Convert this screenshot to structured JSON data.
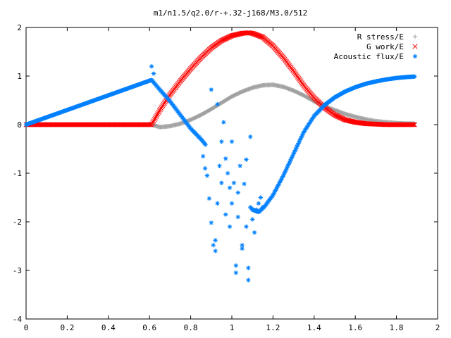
{
  "chart_data": {
    "type": "scatter",
    "title": "m1/n1.5/q2.0/r-+.32-j168/M3.0/512",
    "xlabel": "",
    "ylabel": "",
    "xlim": [
      0,
      2
    ],
    "ylim": [
      -4,
      2
    ],
    "xticks": [
      "0",
      "0.2",
      "0.4",
      "0.6",
      "0.8",
      "1",
      "1.2",
      "1.4",
      "1.6",
      "1.8",
      "2"
    ],
    "yticks": [
      "-4",
      "-3",
      "-2",
      "-1",
      "0",
      "1",
      "2"
    ],
    "grid": false,
    "legend_position": "top-right",
    "series": [
      {
        "name": "R stress/E",
        "marker": "+",
        "color": "#a0a0a0",
        "x": [
          0.0,
          0.61,
          0.65,
          0.7,
          0.75,
          0.8,
          0.85,
          0.9,
          0.95,
          1.0,
          1.05,
          1.1,
          1.15,
          1.2,
          1.25,
          1.3,
          1.35,
          1.4,
          1.45,
          1.5,
          1.55,
          1.6,
          1.65,
          1.7,
          1.75,
          1.8,
          1.85,
          1.89
        ],
        "y": [
          0.0,
          0.0,
          -0.05,
          -0.03,
          0.02,
          0.1,
          0.2,
          0.32,
          0.45,
          0.58,
          0.68,
          0.76,
          0.81,
          0.82,
          0.78,
          0.7,
          0.6,
          0.48,
          0.38,
          0.3,
          0.22,
          0.16,
          0.11,
          0.07,
          0.05,
          0.03,
          0.02,
          0.02
        ]
      },
      {
        "name": "G work/E",
        "marker": "x",
        "color": "#ff0000",
        "x": [
          0.0,
          0.61,
          0.65,
          0.7,
          0.75,
          0.8,
          0.85,
          0.9,
          0.95,
          1.0,
          1.05,
          1.08,
          1.1,
          1.15,
          1.2,
          1.25,
          1.3,
          1.35,
          1.4,
          1.45,
          1.5,
          1.55,
          1.6,
          1.65,
          1.7,
          1.75,
          1.8,
          1.85,
          1.89
        ],
        "y": [
          0.0,
          0.0,
          0.3,
          0.62,
          0.9,
          1.15,
          1.38,
          1.58,
          1.73,
          1.83,
          1.88,
          1.89,
          1.88,
          1.8,
          1.62,
          1.38,
          1.1,
          0.8,
          0.55,
          0.35,
          0.2,
          0.1,
          0.05,
          0.02,
          0.01,
          0.0,
          0.0,
          0.0,
          0.0
        ]
      },
      {
        "name": "Acoustic flux/E",
        "marker": "*",
        "color": "#0080ff",
        "x": [
          0.0,
          0.61,
          0.65,
          0.7,
          0.75,
          0.8,
          0.85,
          0.87,
          1.1,
          1.13,
          1.16,
          1.2,
          1.25,
          1.3,
          1.35,
          1.4,
          1.45,
          1.5,
          1.55,
          1.6,
          1.65,
          1.7,
          1.75,
          1.8,
          1.85,
          1.89
        ],
        "y": [
          0.0,
          0.92,
          0.72,
          0.48,
          0.2,
          -0.08,
          -0.3,
          -0.4,
          -1.75,
          -1.8,
          -1.68,
          -1.45,
          -1.05,
          -0.6,
          -0.15,
          0.18,
          0.4,
          0.56,
          0.68,
          0.77,
          0.84,
          0.89,
          0.93,
          0.96,
          0.98,
          0.99
        ],
        "scatter_x": [
          0.61,
          0.62,
          0.86,
          0.87,
          0.88,
          0.89,
          0.9,
          0.9,
          0.91,
          0.92,
          0.92,
          0.93,
          0.93,
          0.94,
          0.95,
          0.95,
          0.96,
          0.97,
          0.97,
          0.98,
          0.99,
          0.99,
          1.0,
          1.0,
          1.01,
          1.02,
          1.02,
          1.03,
          1.03,
          1.04,
          1.05,
          1.05,
          1.06,
          1.07,
          1.07,
          1.08,
          1.08,
          1.09,
          1.09,
          1.1,
          1.11,
          1.12,
          1.13,
          1.14,
          1.15
        ],
        "scatter_y": [
          1.2,
          1.05,
          -0.65,
          -0.9,
          -1.05,
          -1.52,
          -2.02,
          0.72,
          -2.48,
          -2.38,
          -2.6,
          -1.62,
          0.42,
          -0.85,
          -1.2,
          -0.35,
          0.05,
          -1.85,
          -0.7,
          -1.0,
          -1.3,
          -2.1,
          -0.35,
          -1.62,
          -1.2,
          -2.9,
          -3.05,
          -1.9,
          -1.4,
          -0.85,
          -2.55,
          -2.48,
          -1.22,
          -2.1,
          -0.72,
          -2.95,
          -3.2,
          -1.7,
          -0.25,
          -1.95,
          -2.22,
          -1.75,
          -1.62,
          -1.5,
          -1.7
        ]
      }
    ]
  }
}
